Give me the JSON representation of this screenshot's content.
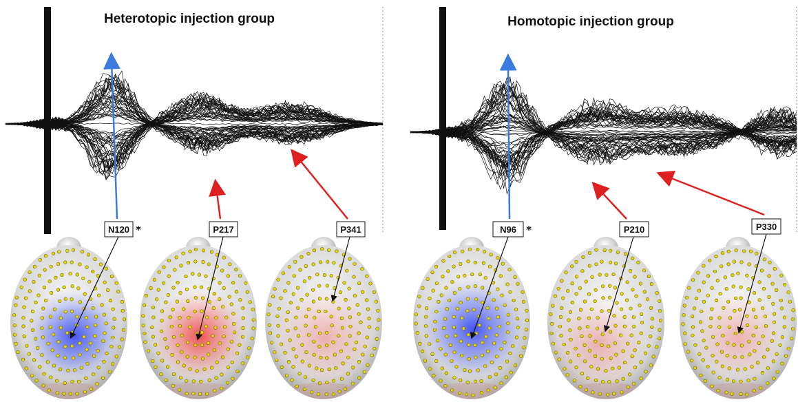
{
  "panels": [
    {
      "title": "Heterotopic injection group",
      "components": [
        {
          "label": "P217",
          "polarity": "positive"
        },
        {
          "label": "P341",
          "polarity": "positive"
        }
      ],
      "n_component": {
        "label": "N120",
        "marker": "*"
      }
    },
    {
      "title": "Homotopic injection group",
      "components": [
        {
          "label": "P210",
          "polarity": "positive"
        },
        {
          "label": "P330",
          "polarity": "positive"
        }
      ],
      "n_component": {
        "label": "N96",
        "marker": "*"
      }
    }
  ],
  "colors": {
    "negative_arrow": "#3b7be0",
    "positive_arrow": "#e02020",
    "negative_map": "#4a5cf0",
    "positive_map": "#f06060",
    "electrode": "#e8d800",
    "waveform": "#111111"
  }
}
